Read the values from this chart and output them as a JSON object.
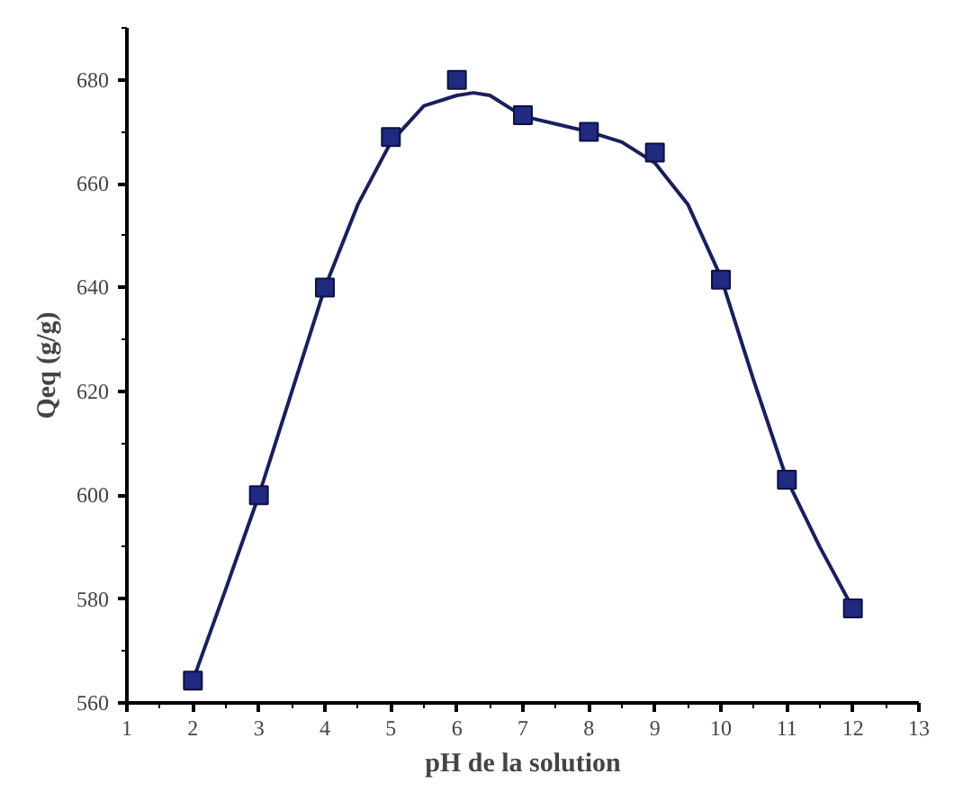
{
  "chart_data": {
    "type": "scatter",
    "xlabel": "pH de la solution",
    "ylabel": "Qeq (g/g)",
    "x": [
      2,
      3,
      4,
      5,
      6,
      7,
      8,
      9,
      10,
      11,
      12
    ],
    "series": [
      {
        "color": "#1f2a80",
        "marker": "square",
        "values": [
          564.3,
          600,
          640,
          669,
          680,
          673.2,
          670,
          666,
          641.5,
          603,
          578.2
        ]
      },
      {
        "type": "line",
        "color": "#1a1f5c",
        "line_style": "solid",
        "x": [
          2,
          2.5,
          3,
          3.5,
          4,
          4.5,
          5,
          5.5,
          6,
          6.25,
          6.5,
          7,
          7.5,
          8,
          8.5,
          9,
          9.5,
          10,
          10.5,
          11,
          11.5,
          12
        ],
        "values": [
          564.3,
          582,
          600,
          620,
          640,
          656,
          668,
          675,
          677,
          677.5,
          677,
          673,
          671.5,
          670,
          668,
          664,
          656,
          642,
          622,
          603,
          590,
          578.2
        ]
      }
    ],
    "xlim": [
      1,
      13
    ],
    "xticks": [
      1,
      2,
      3,
      4,
      5,
      6,
      7,
      8,
      9,
      10,
      11,
      12,
      13
    ],
    "ylim": [
      560,
      690
    ],
    "yticks": [
      560,
      580,
      600,
      620,
      640,
      660,
      680
    ],
    "grid": false
  }
}
